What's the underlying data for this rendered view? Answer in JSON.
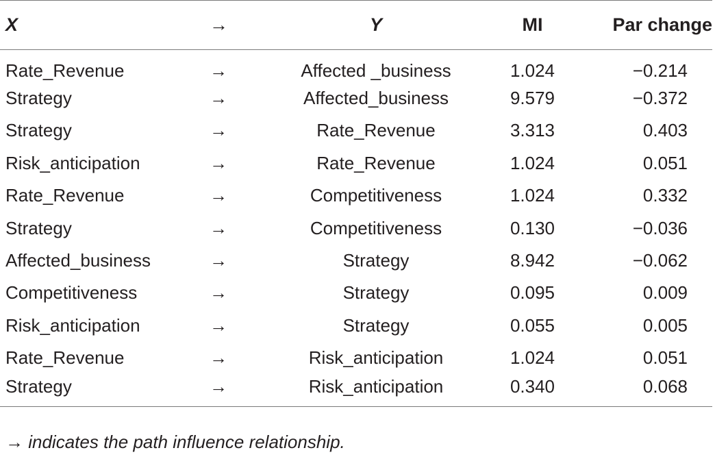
{
  "table": {
    "headers": {
      "x": "X",
      "arrow": "→",
      "y": "Y",
      "mi": "MI",
      "par": "Par change"
    },
    "rows": [
      {
        "x": "Rate_Revenue",
        "arrow": "→",
        "y": "Affected _business",
        "mi": "1.024",
        "par": "−0.214"
      },
      {
        "x": "Strategy",
        "arrow": "→",
        "y": "Affected_business",
        "mi": "9.579",
        "par": "−0.372"
      },
      {
        "x": "Strategy",
        "arrow": "→",
        "y": "Rate_Revenue",
        "mi": "3.313",
        "par": "0.403"
      },
      {
        "x": "Risk_anticipation",
        "arrow": "→",
        "y": "Rate_Revenue",
        "mi": "1.024",
        "par": "0.051"
      },
      {
        "x": "Rate_Revenue",
        "arrow": "→",
        "y": "Competitiveness",
        "mi": "1.024",
        "par": "0.332"
      },
      {
        "x": "Strategy",
        "arrow": "→",
        "y": "Competitiveness",
        "mi": "0.130",
        "par": "−0.036"
      },
      {
        "x": "Affected_business",
        "arrow": "→",
        "y": "Strategy",
        "mi": "8.942",
        "par": "−0.062"
      },
      {
        "x": "Competitiveness",
        "arrow": "→",
        "y": "Strategy",
        "mi": "0.095",
        "par": "0.009"
      },
      {
        "x": "Risk_anticipation",
        "arrow": "→",
        "y": "Strategy",
        "mi": "0.055",
        "par": "0.005"
      },
      {
        "x": "Rate_Revenue",
        "arrow": "→",
        "y": "Risk_anticipation",
        "mi": "1.024",
        "par": "0.051"
      },
      {
        "x": "Strategy",
        "arrow": "→",
        "y": "Risk_anticipation",
        "mi": "0.340",
        "par": "0.068"
      }
    ]
  },
  "footnote": {
    "arrow": "→",
    "text": "indicates the path influence relationship."
  }
}
